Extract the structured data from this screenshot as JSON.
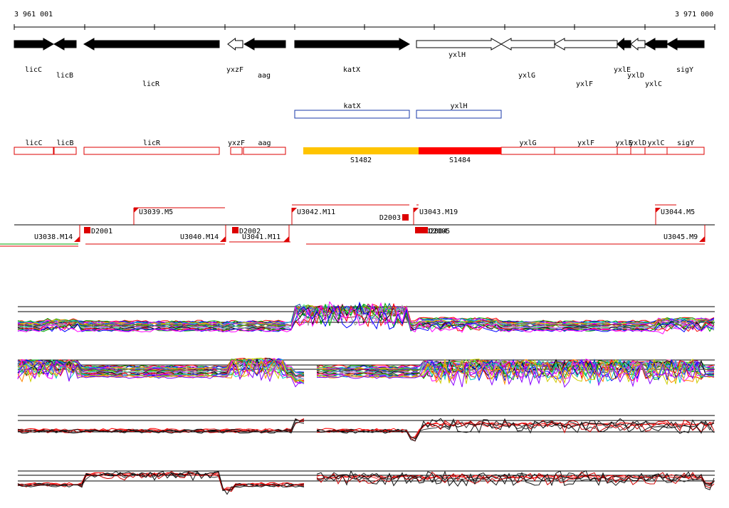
{
  "coords": {
    "start": "3 961 001",
    "end": "3 971 000"
  },
  "genes": [
    {
      "label": "licC",
      "fill": "black",
      "dir": "right"
    },
    {
      "label": "licB",
      "fill": "black",
      "dir": "left"
    },
    {
      "label": "licR",
      "fill": "black",
      "dir": "left"
    },
    {
      "label": "yxzF",
      "fill": "white",
      "dir": "left"
    },
    {
      "label": "aag",
      "fill": "black",
      "dir": "left"
    },
    {
      "label": "katX",
      "fill": "black",
      "dir": "right"
    },
    {
      "label": "yxlH",
      "fill": "white",
      "dir": "right"
    },
    {
      "label": "yxlG",
      "fill": "white",
      "dir": "left"
    },
    {
      "label": "yxlF",
      "fill": "white",
      "dir": "left"
    },
    {
      "label": "yxlE",
      "fill": "black",
      "dir": "left"
    },
    {
      "label": "yxlD",
      "fill": "white",
      "dir": "left"
    },
    {
      "label": "yxlC",
      "fill": "black",
      "dir": "left"
    },
    {
      "label": "sigY",
      "fill": "black",
      "dir": "left"
    }
  ],
  "blue_boxes": [
    "katX",
    "yxlH"
  ],
  "red_boxes": [
    "licC",
    "licB",
    "licR",
    "yxzF",
    "aag",
    "yxlG",
    "yxlF",
    "yxlE",
    "yxlD",
    "yxlC",
    "sigY"
  ],
  "segments": [
    {
      "label": "S1482",
      "color": "#ffc400"
    },
    {
      "label": "S1484",
      "color": "#ff0000"
    }
  ],
  "upper_flags": [
    "U3039.M5",
    "U3042.M11",
    "U3043.M19",
    "U3044.M5",
    "D2003"
  ],
  "lower_flags": [
    "U3038.M14",
    "D2001",
    "U3040.M14",
    "D2002",
    "U3041.M11",
    "D2004",
    "D2005",
    "U3045.M9"
  ],
  "colors": {
    "gene": "#000000",
    "blue": "#1a3aaa",
    "red": "#dd0000",
    "yellow": "#ffc400"
  }
}
